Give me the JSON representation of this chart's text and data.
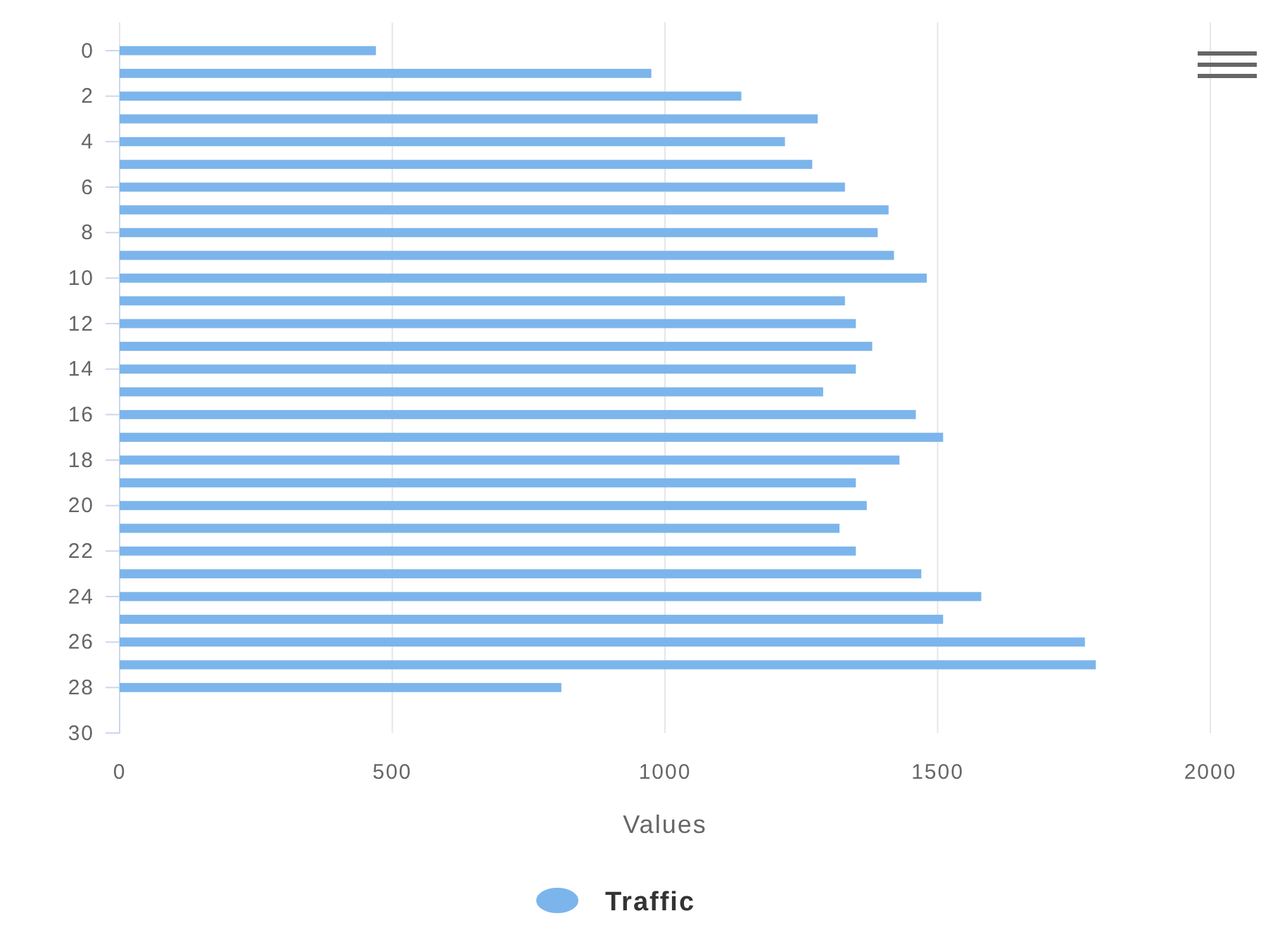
{
  "chart_data": {
    "type": "bar",
    "orientation": "horizontal",
    "xlabel": "Values",
    "x": [
      0,
      1,
      2,
      3,
      4,
      5,
      6,
      7,
      8,
      9,
      10,
      11,
      12,
      13,
      14,
      15,
      16,
      17,
      18,
      19,
      20,
      21,
      22,
      23,
      24,
      25,
      26,
      27,
      28
    ],
    "series": [
      {
        "name": "Traffic",
        "color": "#7cb5ec",
        "values": [
          470,
          975,
          1140,
          1280,
          1220,
          1270,
          1330,
          1410,
          1390,
          1420,
          1480,
          1330,
          1350,
          1380,
          1350,
          1290,
          1460,
          1510,
          1430,
          1350,
          1370,
          1320,
          1350,
          1470,
          1580,
          1510,
          1770,
          1790,
          810
        ]
      }
    ],
    "xlim": [
      0,
      2000
    ],
    "xticks": [
      0,
      500,
      1000,
      1500,
      2000
    ],
    "ylim": [
      30,
      0
    ],
    "yticks": [
      0,
      2,
      4,
      6,
      8,
      10,
      12,
      14,
      16,
      18,
      20,
      22,
      24,
      26,
      28,
      30
    ],
    "grid": "x",
    "legend": "bottom"
  }
}
